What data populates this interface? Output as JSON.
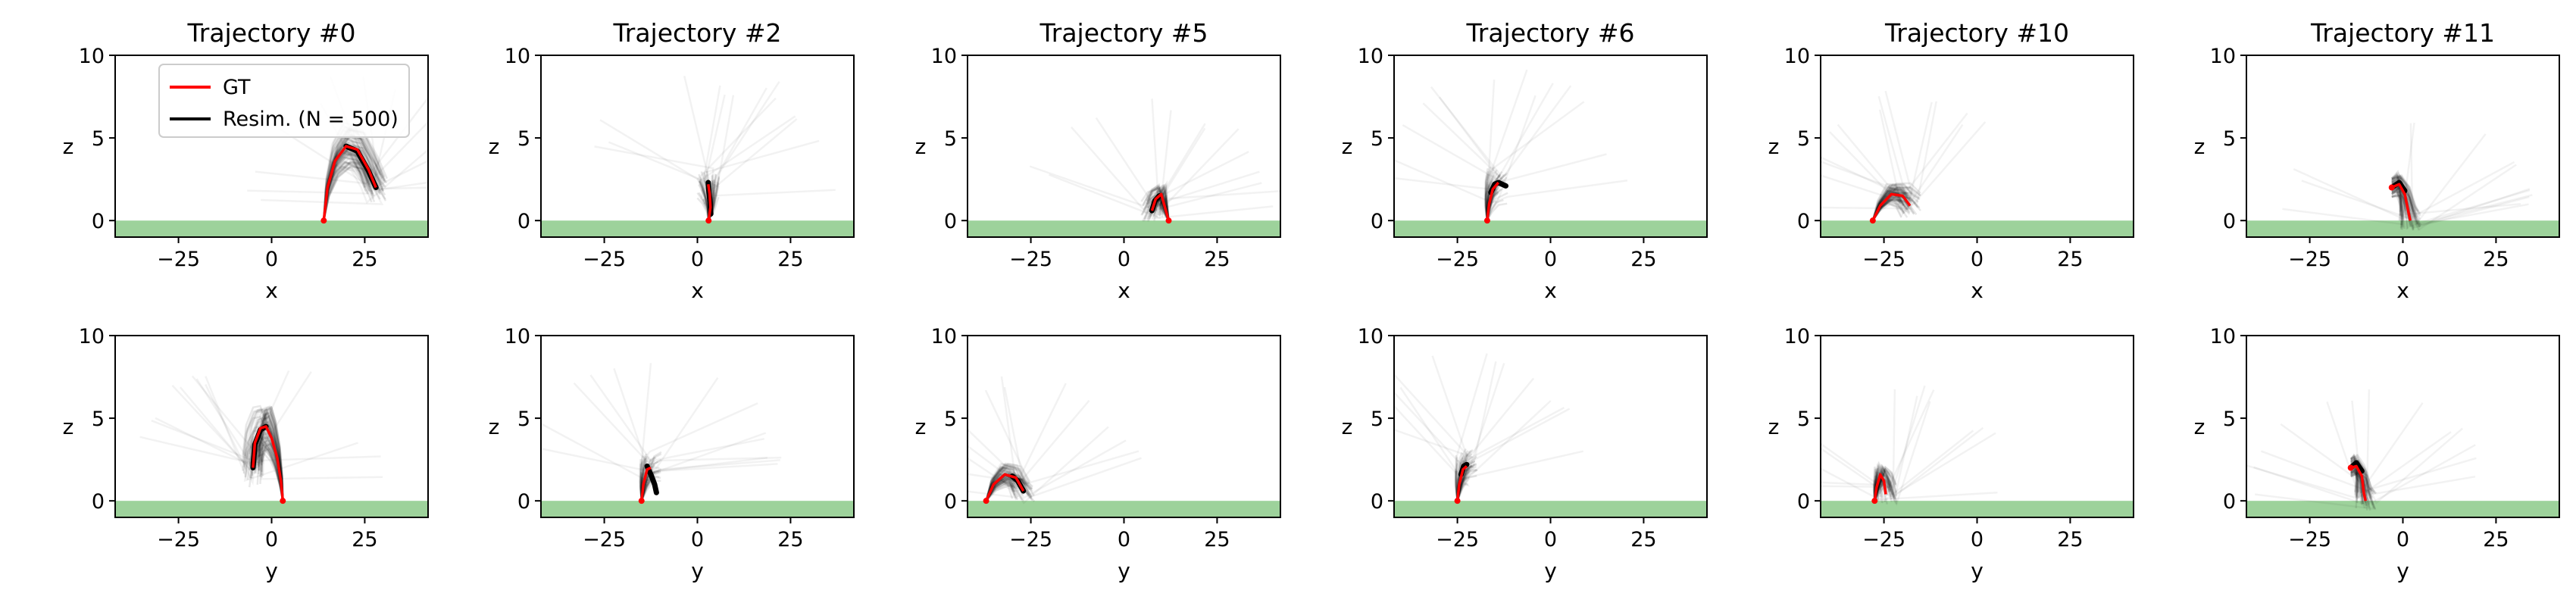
{
  "chart_data": {
    "type": "line",
    "layout": {
      "rows": 2,
      "columns": 6
    },
    "shared_axes": {
      "xlim": [
        -42,
        42
      ],
      "ylim": [
        -1,
        10
      ],
      "xticks": [
        -25,
        0,
        25
      ],
      "yticks": [
        0,
        5,
        10
      ],
      "ylabel": "z",
      "ground_z": [
        -1,
        0
      ],
      "grid": false
    },
    "colors": {
      "gt": "#ff0000",
      "resim": "#000000",
      "ground": "#9dd29b"
    },
    "legend": {
      "placement": "top-left",
      "entries": [
        {
          "label": "GT",
          "color": "#ff0000"
        },
        {
          "label": "Resim. (N = 500)",
          "color": "#000000"
        }
      ]
    },
    "panels": [
      {
        "title": "Trajectory #0",
        "xlabel": "x",
        "gt": [
          [
            14,
            0
          ],
          [
            15,
            2
          ],
          [
            17,
            3.6
          ],
          [
            20,
            4.5
          ],
          [
            23,
            4.3
          ],
          [
            26,
            3.1
          ],
          [
            28,
            2
          ]
        ],
        "resim_mean": [
          [
            20,
            4.5
          ],
          [
            23,
            4.2
          ],
          [
            26,
            3
          ],
          [
            28,
            2
          ]
        ]
      },
      {
        "title": "Trajectory #2",
        "xlabel": "x",
        "gt": [
          [
            3,
            0
          ],
          [
            3.5,
            0.8
          ],
          [
            3.3,
            1.6
          ],
          [
            2.9,
            2.2
          ]
        ],
        "resim_mean": [
          [
            2.9,
            2.3
          ],
          [
            3.1,
            1.7
          ],
          [
            3.4,
            1.1
          ],
          [
            3.6,
            0.4
          ]
        ]
      },
      {
        "title": "Trajectory #5",
        "xlabel": "x",
        "gt": [
          [
            12,
            0
          ],
          [
            11,
            0.8
          ],
          [
            10,
            1.6
          ],
          [
            8.5,
            1.3
          ],
          [
            7.5,
            0.6
          ]
        ],
        "resim_mean": [
          [
            7.5,
            0.6
          ],
          [
            8.3,
            1.2
          ],
          [
            9.5,
            1.5
          ]
        ]
      },
      {
        "title": "Trajectory #6",
        "xlabel": "x",
        "gt": [
          [
            -17,
            0
          ],
          [
            -16.5,
            1
          ],
          [
            -15.5,
            1.9
          ],
          [
            -14,
            2.3
          ]
        ],
        "resim_mean": [
          [
            -16,
            1.7
          ],
          [
            -15,
            2.2
          ],
          [
            -14,
            2.3
          ],
          [
            -12,
            2.1
          ]
        ]
      },
      {
        "title": "Trajectory #10",
        "xlabel": "x",
        "gt": [
          [
            -28,
            0
          ],
          [
            -26,
            0.9
          ],
          [
            -23,
            1.6
          ],
          [
            -20,
            1.5
          ],
          [
            -18,
            0.9
          ]
        ],
        "resim_mean": []
      },
      {
        "title": "Trajectory #11",
        "xlabel": "x",
        "gt": [
          [
            -3,
            2
          ],
          [
            -1,
            2.2
          ],
          [
            0.5,
            1.6
          ],
          [
            1.5,
            0.5
          ],
          [
            2,
            0
          ]
        ],
        "resim_mean": [
          [
            -3,
            2
          ],
          [
            -1,
            2.3
          ],
          [
            0.5,
            1.8
          ]
        ]
      },
      {
        "title": "",
        "xlabel": "y",
        "gt": [
          [
            3,
            0
          ],
          [
            2.5,
            1.2
          ],
          [
            1.5,
            2.6
          ],
          [
            0,
            3.8
          ],
          [
            -1.5,
            4.5
          ],
          [
            -3,
            4.4
          ],
          [
            -4.5,
            3.5
          ],
          [
            -5,
            2
          ]
        ],
        "resim_mean": [
          [
            -1.5,
            4.5
          ],
          [
            -3,
            4.3
          ],
          [
            -4.5,
            3.4
          ],
          [
            -5,
            2
          ]
        ]
      },
      {
        "title": "",
        "xlabel": "y",
        "gt": [
          [
            -15,
            0
          ],
          [
            -14.5,
            1
          ],
          [
            -13.5,
            1.9
          ],
          [
            -12.5,
            2
          ]
        ],
        "resim_mean": [
          [
            -13.5,
            2.1
          ],
          [
            -12.5,
            1.6
          ],
          [
            -11.5,
            1
          ],
          [
            -11,
            0.5
          ]
        ]
      },
      {
        "title": "",
        "xlabel": "y",
        "gt": [
          [
            -37,
            0
          ],
          [
            -35,
            1
          ],
          [
            -32,
            1.6
          ],
          [
            -29,
            1.4
          ],
          [
            -27,
            0.6
          ]
        ],
        "resim_mean": [
          [
            -30,
            1.5
          ],
          [
            -28.5,
            1.2
          ],
          [
            -27,
            0.6
          ]
        ]
      },
      {
        "title": "",
        "xlabel": "y",
        "gt": [
          [
            -25,
            0
          ],
          [
            -24.5,
            1
          ],
          [
            -23.5,
            1.9
          ],
          [
            -22.5,
            2.1
          ]
        ],
        "resim_mean": [
          [
            -24,
            1.6
          ],
          [
            -23.3,
            2.1
          ],
          [
            -22.5,
            2.2
          ]
        ]
      },
      {
        "title": "",
        "xlabel": "y",
        "gt": [
          [
            -27.5,
            0
          ],
          [
            -27,
            0.8
          ],
          [
            -26,
            1.6
          ],
          [
            -25,
            1.2
          ],
          [
            -24.5,
            0.4
          ]
        ],
        "resim_mean": []
      },
      {
        "title": "",
        "xlabel": "y",
        "gt": [
          [
            -14,
            2
          ],
          [
            -12.5,
            2.1
          ],
          [
            -11,
            1.5
          ],
          [
            -10.5,
            0.5
          ],
          [
            -10,
            0
          ]
        ],
        "resim_mean": [
          [
            -14,
            2
          ],
          [
            -12.5,
            2.3
          ],
          [
            -11,
            1.8
          ]
        ]
      }
    ]
  }
}
